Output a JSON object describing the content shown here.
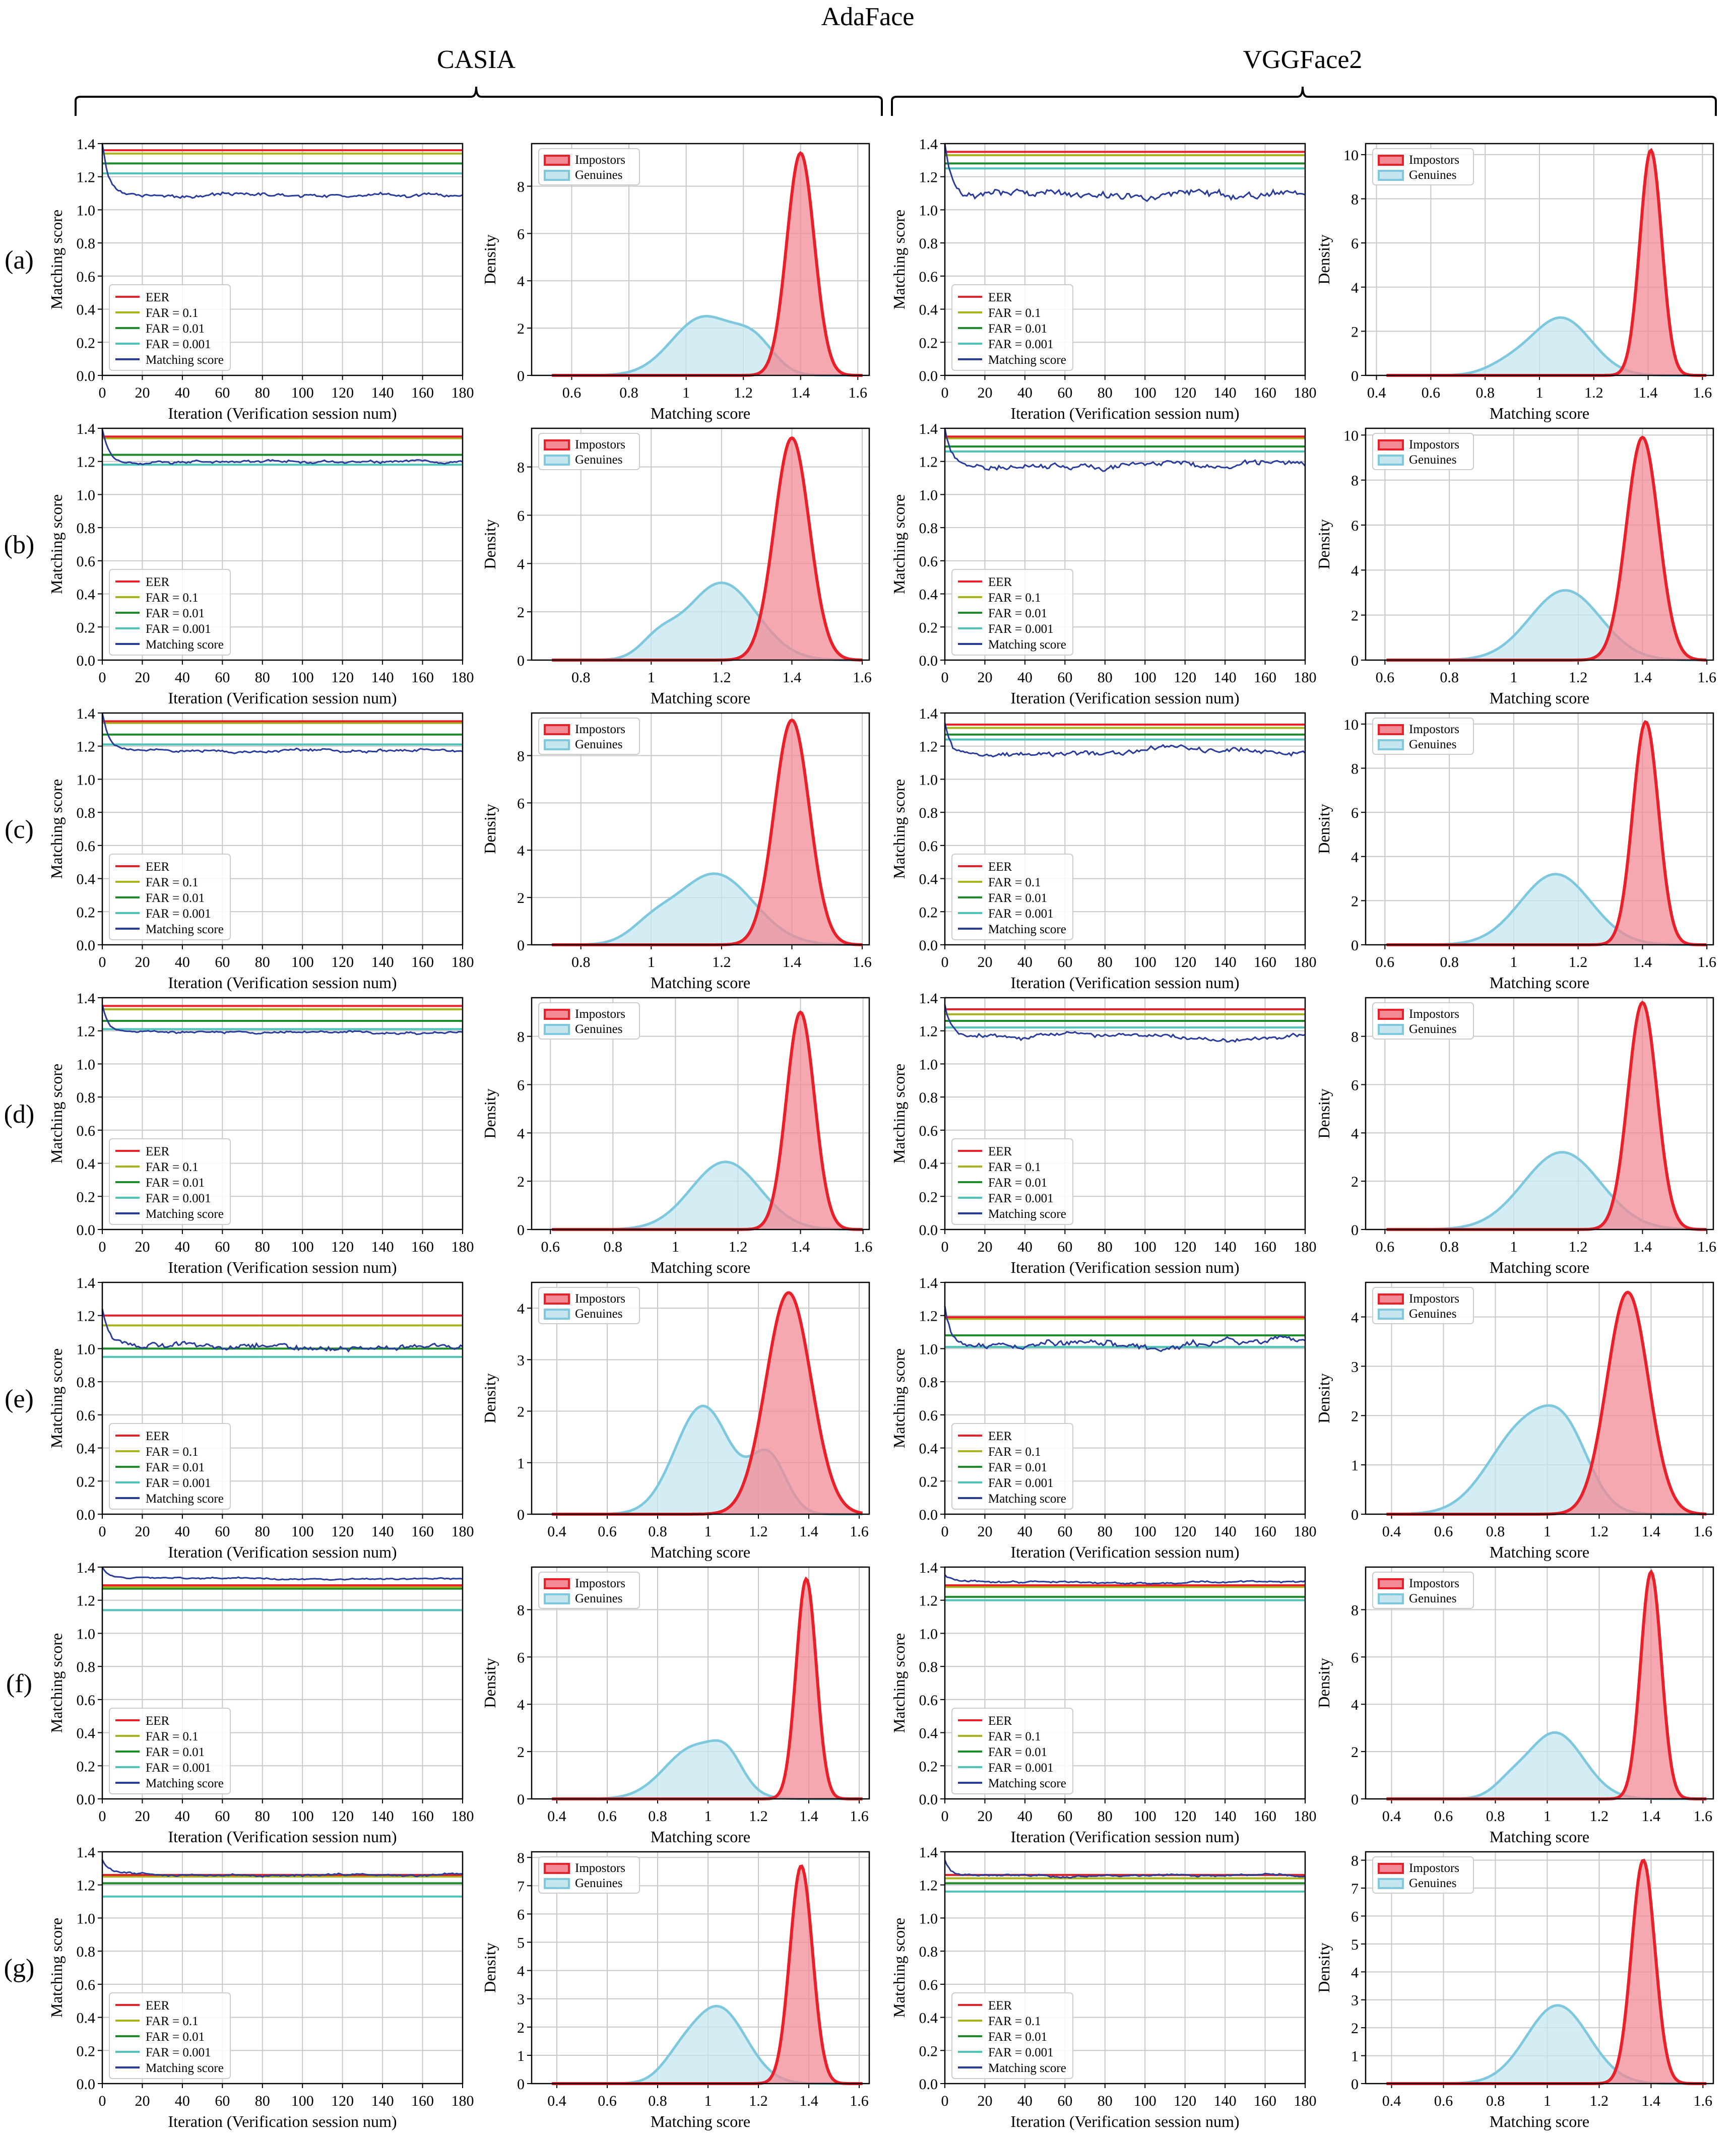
{
  "figure_title": "AdaFace",
  "column_groups": [
    "CASIA",
    "VGGFace2"
  ],
  "row_labels": [
    "(a)",
    "(b)",
    "(c)",
    "(d)",
    "(e)",
    "(f)",
    "(g)"
  ],
  "colors": {
    "eer": "#e8202a",
    "far_0_1": "#a8b41c",
    "far_0_01": "#1f8a2a",
    "far_0_001": "#4fc3b8",
    "matching_score": "#2a3c9a",
    "impostors": "#e8202a",
    "impostors_fill": "#f28b95",
    "genuines": "#7ec8de",
    "genuines_fill": "#c6e6ef",
    "grid": "#c8c8c8"
  },
  "session_plot": {
    "xlabel": "Iteration (Verification session num)",
    "ylabel": "Matching score",
    "xlim": [
      0,
      180
    ],
    "ylim": [
      0,
      1.4
    ],
    "xticks": [
      0,
      20,
      40,
      60,
      80,
      100,
      120,
      140,
      160,
      180
    ],
    "yticks": [
      0.0,
      0.2,
      0.4,
      0.6,
      0.8,
      1.0,
      1.2,
      1.4
    ],
    "legend": [
      "EER",
      "FAR = 0.1",
      "FAR = 0.01",
      "FAR = 0.001",
      "Matching score"
    ],
    "legend_position": "lower-left"
  },
  "density_plot": {
    "xlabel": "Matching score",
    "ylabel": "Density",
    "legend": [
      "Impostors",
      "Genuines"
    ],
    "legend_position": "upper-left"
  },
  "chart_data": [
    {
      "type": "line",
      "panel": "(a) CASIA session",
      "thresholds": {
        "EER": 1.36,
        "FAR = 0.1": 1.34,
        "FAR = 0.01": 1.28,
        "FAR = 0.001": 1.22
      },
      "score_start": 1.4,
      "score_level": 1.09,
      "score_noise": 0.02
    },
    {
      "type": "area",
      "panel": "(a) CASIA density",
      "xlim": [
        0.46,
        1.64
      ],
      "xticks": [
        0.6,
        0.8,
        1.0,
        1.2,
        1.4,
        1.6
      ],
      "ylim": [
        0,
        9.8
      ],
      "yticks": [
        0,
        2,
        4,
        6,
        8
      ],
      "impostors": {
        "components": [
          [
            1.4,
            0.048,
            9.4
          ]
        ]
      },
      "genuines": {
        "components": [
          [
            1.06,
            0.11,
            2.45
          ],
          [
            1.24,
            0.07,
            1.2
          ]
        ]
      }
    },
    {
      "type": "line",
      "panel": "(a) VGGFace2 session",
      "thresholds": {
        "EER": 1.35,
        "FAR = 0.1": 1.33,
        "FAR = 0.01": 1.28,
        "FAR = 0.001": 1.25
      },
      "score_start": 1.4,
      "score_level": 1.1,
      "score_noise": 0.04
    },
    {
      "type": "area",
      "panel": "(a) VGGFace2 density",
      "xlim": [
        0.36,
        1.64
      ],
      "xticks": [
        0.4,
        0.6,
        0.8,
        1.0,
        1.2,
        1.4,
        1.6
      ],
      "ylim": [
        0,
        10.5
      ],
      "yticks": [
        0,
        2,
        4,
        6,
        8,
        10
      ],
      "impostors": {
        "components": [
          [
            1.41,
            0.04,
            10.2
          ]
        ]
      },
      "genuines": {
        "components": [
          [
            1.08,
            0.11,
            2.6
          ],
          [
            0.88,
            0.08,
            0.4
          ]
        ]
      }
    },
    {
      "type": "line",
      "panel": "(b) CASIA session",
      "thresholds": {
        "EER": 1.35,
        "FAR = 0.1": 1.34,
        "FAR = 0.01": 1.24,
        "FAR = 0.001": 1.18
      },
      "score_start": 1.4,
      "score_level": 1.2,
      "score_noise": 0.015
    },
    {
      "type": "area",
      "panel": "(b) CASIA density",
      "xlim": [
        0.66,
        1.62
      ],
      "xticks": [
        0.8,
        1.0,
        1.2,
        1.4,
        1.6
      ],
      "ylim": [
        0,
        9.6
      ],
      "yticks": [
        0,
        2,
        4,
        6,
        8
      ],
      "impostors": {
        "components": [
          [
            1.4,
            0.05,
            9.2
          ]
        ]
      },
      "genuines": {
        "components": [
          [
            1.2,
            0.1,
            3.2
          ],
          [
            1.02,
            0.05,
            0.7
          ]
        ]
      }
    },
    {
      "type": "line",
      "panel": "(b) VGGFace2 session",
      "thresholds": {
        "EER": 1.35,
        "FAR = 0.1": 1.34,
        "FAR = 0.01": 1.29,
        "FAR = 0.001": 1.26
      },
      "score_start": 1.4,
      "score_level": 1.18,
      "score_noise": 0.03
    },
    {
      "type": "area",
      "panel": "(b) VGGFace2 density",
      "xlim": [
        0.54,
        1.62
      ],
      "xticks": [
        0.6,
        0.8,
        1.0,
        1.2,
        1.4,
        1.6
      ],
      "ylim": [
        0,
        10.3
      ],
      "yticks": [
        0,
        2,
        4,
        6,
        8,
        10
      ],
      "impostors": {
        "components": [
          [
            1.4,
            0.05,
            9.9
          ]
        ]
      },
      "genuines": {
        "components": [
          [
            1.16,
            0.11,
            3.1
          ]
        ]
      }
    },
    {
      "type": "line",
      "panel": "(c) CASIA session",
      "thresholds": {
        "EER": 1.35,
        "FAR = 0.1": 1.34,
        "FAR = 0.01": 1.27,
        "FAR = 0.001": 1.21
      },
      "score_start": 1.4,
      "score_level": 1.17,
      "score_noise": 0.015
    },
    {
      "type": "area",
      "panel": "(c) CASIA density",
      "xlim": [
        0.66,
        1.62
      ],
      "xticks": [
        0.8,
        1.0,
        1.2,
        1.4,
        1.6
      ],
      "ylim": [
        0,
        9.8
      ],
      "yticks": [
        0,
        2,
        4,
        6,
        8
      ],
      "impostors": {
        "components": [
          [
            1.4,
            0.05,
            9.5
          ]
        ]
      },
      "genuines": {
        "components": [
          [
            1.18,
            0.11,
            3.0
          ],
          [
            1.0,
            0.06,
            0.6
          ]
        ]
      }
    },
    {
      "type": "line",
      "panel": "(c) VGGFace2 session",
      "thresholds": {
        "EER": 1.33,
        "FAR = 0.1": 1.31,
        "FAR = 0.01": 1.27,
        "FAR = 0.001": 1.24
      },
      "score_start": 1.35,
      "score_level": 1.16,
      "score_noise": 0.03
    },
    {
      "type": "area",
      "panel": "(c) VGGFace2 density",
      "xlim": [
        0.54,
        1.62
      ],
      "xticks": [
        0.6,
        0.8,
        1.0,
        1.2,
        1.4,
        1.6
      ],
      "ylim": [
        0,
        10.5
      ],
      "yticks": [
        0,
        2,
        4,
        6,
        8,
        10
      ],
      "impostors": {
        "components": [
          [
            1.41,
            0.04,
            10.1
          ]
        ]
      },
      "genuines": {
        "components": [
          [
            1.13,
            0.11,
            3.2
          ]
        ]
      }
    },
    {
      "type": "line",
      "panel": "(d) CASIA session",
      "thresholds": {
        "EER": 1.35,
        "FAR = 0.1": 1.33,
        "FAR = 0.01": 1.26,
        "FAR = 0.001": 1.21
      },
      "score_start": 1.36,
      "score_level": 1.19,
      "score_noise": 0.012
    },
    {
      "type": "area",
      "panel": "(d) CASIA density",
      "xlim": [
        0.54,
        1.62
      ],
      "xticks": [
        0.6,
        0.8,
        1.0,
        1.2,
        1.4,
        1.6
      ],
      "ylim": [
        0,
        9.6
      ],
      "yticks": [
        0,
        2,
        4,
        6,
        8
      ],
      "impostors": {
        "components": [
          [
            1.4,
            0.045,
            9.0
          ]
        ]
      },
      "genuines": {
        "components": [
          [
            1.16,
            0.11,
            2.8
          ]
        ]
      }
    },
    {
      "type": "line",
      "panel": "(d) VGGFace2 session",
      "thresholds": {
        "EER": 1.33,
        "FAR = 0.1": 1.3,
        "FAR = 0.01": 1.26,
        "FAR = 0.001": 1.22
      },
      "score_start": 1.35,
      "score_level": 1.17,
      "score_noise": 0.025
    },
    {
      "type": "area",
      "panel": "(d) VGGFace2 density",
      "xlim": [
        0.54,
        1.62
      ],
      "xticks": [
        0.6,
        0.8,
        1.0,
        1.2,
        1.4,
        1.6
      ],
      "ylim": [
        0,
        9.6
      ],
      "yticks": [
        0,
        2,
        4,
        6,
        8
      ],
      "impostors": {
        "components": [
          [
            1.4,
            0.045,
            9.4
          ]
        ]
      },
      "genuines": {
        "components": [
          [
            1.15,
            0.12,
            3.2
          ]
        ]
      }
    },
    {
      "type": "line",
      "panel": "(e) CASIA session",
      "thresholds": {
        "EER": 1.2,
        "FAR = 0.1": 1.14,
        "FAR = 0.01": 1.0,
        "FAR = 0.001": 0.95
      },
      "score_start": 1.25,
      "score_level": 1.02,
      "score_noise": 0.03
    },
    {
      "type": "area",
      "panel": "(e) CASIA density",
      "xlim": [
        0.3,
        1.64
      ],
      "xticks": [
        0.4,
        0.6,
        0.8,
        1.0,
        1.2,
        1.4,
        1.6
      ],
      "ylim": [
        0,
        4.5
      ],
      "yticks": [
        0,
        1,
        2,
        3,
        4
      ],
      "impostors": {
        "components": [
          [
            1.32,
            0.09,
            4.3
          ]
        ]
      },
      "genuines": {
        "components": [
          [
            0.98,
            0.11,
            2.1
          ],
          [
            1.24,
            0.07,
            1.1
          ]
        ]
      }
    },
    {
      "type": "line",
      "panel": "(e) VGGFace2 session",
      "thresholds": {
        "EER": 1.19,
        "FAR = 0.1": 1.18,
        "FAR = 0.01": 1.08,
        "FAR = 0.001": 1.01
      },
      "score_start": 1.25,
      "score_level": 1.02,
      "score_noise": 0.035
    },
    {
      "type": "area",
      "panel": "(e) VGGFace2 density",
      "xlim": [
        0.3,
        1.64
      ],
      "xticks": [
        0.4,
        0.6,
        0.8,
        1.0,
        1.2,
        1.4,
        1.6
      ],
      "ylim": [
        0,
        4.7
      ],
      "yticks": [
        0,
        1,
        2,
        3,
        4
      ],
      "impostors": {
        "components": [
          [
            1.31,
            0.08,
            4.5
          ]
        ]
      },
      "genuines": {
        "components": [
          [
            0.92,
            0.14,
            1.8
          ],
          [
            1.08,
            0.09,
            1.0
          ]
        ]
      }
    },
    {
      "type": "line",
      "panel": "(f) CASIA session",
      "thresholds": {
        "EER": 1.29,
        "FAR = 0.1": 1.28,
        "FAR = 0.01": 1.27,
        "FAR = 0.001": 1.14
      },
      "score_start": 1.4,
      "score_level": 1.33,
      "score_noise": 0.008
    },
    {
      "type": "area",
      "panel": "(f) CASIA density",
      "xlim": [
        0.3,
        1.64
      ],
      "xticks": [
        0.4,
        0.6,
        0.8,
        1.0,
        1.2,
        1.4,
        1.6
      ],
      "ylim": [
        0,
        9.8
      ],
      "yticks": [
        0,
        2,
        4,
        6,
        8
      ],
      "impostors": {
        "components": [
          [
            1.39,
            0.04,
            9.3
          ]
        ]
      },
      "genuines": {
        "components": [
          [
            0.95,
            0.12,
            2.2
          ],
          [
            1.08,
            0.06,
            1.0
          ]
        ]
      }
    },
    {
      "type": "line",
      "panel": "(f) VGGFace2 session",
      "thresholds": {
        "EER": 1.29,
        "FAR = 0.1": 1.28,
        "FAR = 0.01": 1.22,
        "FAR = 0.001": 1.2
      },
      "score_start": 1.35,
      "score_level": 1.31,
      "score_noise": 0.01
    },
    {
      "type": "area",
      "panel": "(f) VGGFace2 density",
      "xlim": [
        0.3,
        1.64
      ],
      "xticks": [
        0.4,
        0.6,
        0.8,
        1.0,
        1.2,
        1.4,
        1.6
      ],
      "ylim": [
        0,
        9.8
      ],
      "yticks": [
        0,
        2,
        4,
        6,
        8
      ],
      "impostors": {
        "components": [
          [
            1.4,
            0.04,
            9.6
          ]
        ]
      },
      "genuines": {
        "components": [
          [
            1.03,
            0.11,
            2.8
          ],
          [
            0.85,
            0.06,
            0.4
          ]
        ]
      }
    },
    {
      "type": "line",
      "panel": "(g) CASIA session",
      "thresholds": {
        "EER": 1.26,
        "FAR = 0.1": 1.25,
        "FAR = 0.01": 1.21,
        "FAR = 0.001": 1.13
      },
      "score_start": 1.35,
      "score_level": 1.265,
      "score_noise": 0.012
    },
    {
      "type": "area",
      "panel": "(g) CASIA density",
      "xlim": [
        0.3,
        1.64
      ],
      "xticks": [
        0.4,
        0.6,
        0.8,
        1.0,
        1.2,
        1.4,
        1.6
      ],
      "ylim": [
        0,
        8.2
      ],
      "yticks": [
        0,
        1,
        2,
        3,
        4,
        5,
        6,
        7,
        8
      ],
      "impostors": {
        "components": [
          [
            1.37,
            0.045,
            7.7
          ]
        ]
      },
      "genuines": {
        "components": [
          [
            1.04,
            0.11,
            2.7
          ],
          [
            0.88,
            0.07,
            0.5
          ]
        ]
      }
    },
    {
      "type": "line",
      "panel": "(g) VGGFace2 session",
      "thresholds": {
        "EER": 1.26,
        "FAR = 0.1": 1.24,
        "FAR = 0.01": 1.21,
        "FAR = 0.001": 1.16
      },
      "score_start": 1.35,
      "score_level": 1.26,
      "score_noise": 0.012
    },
    {
      "type": "area",
      "panel": "(g) VGGFace2 density",
      "xlim": [
        0.3,
        1.64
      ],
      "xticks": [
        0.4,
        0.6,
        0.8,
        1.0,
        1.2,
        1.4,
        1.6
      ],
      "ylim": [
        0,
        8.3
      ],
      "yticks": [
        0,
        1,
        2,
        3,
        4,
        5,
        6,
        7,
        8
      ],
      "impostors": {
        "components": [
          [
            1.37,
            0.045,
            8.0
          ]
        ]
      },
      "genuines": {
        "components": [
          [
            1.04,
            0.12,
            2.8
          ]
        ]
      }
    }
  ]
}
